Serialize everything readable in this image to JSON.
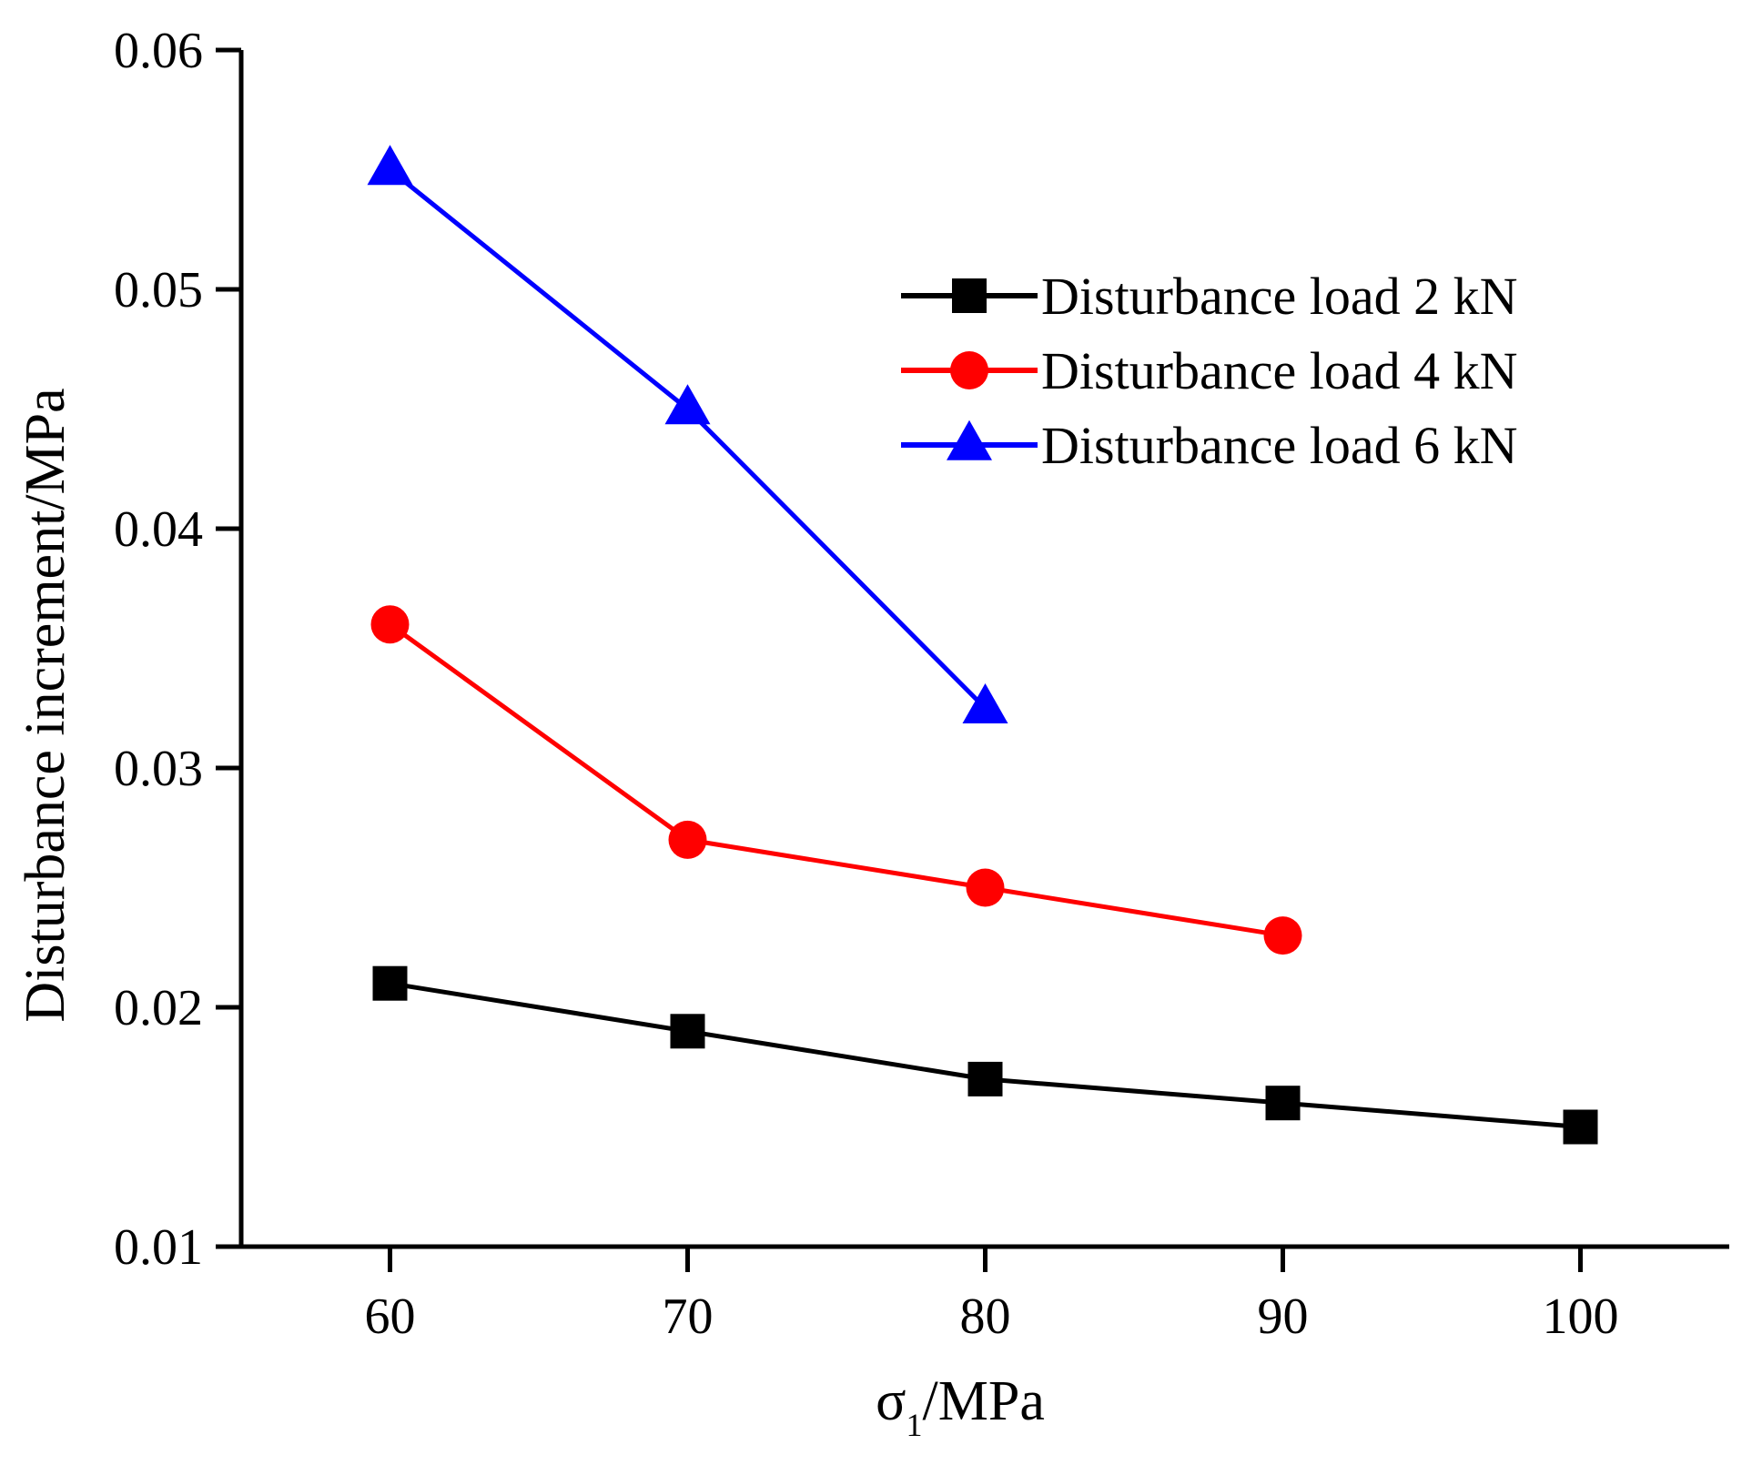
{
  "chart_data": {
    "type": "line",
    "title": "",
    "xlabel": {
      "main": "σ",
      "subscript": "1",
      "suffix": "/MPa"
    },
    "ylabel": "Disturbance increment/MPa",
    "xlim": [
      55,
      105
    ],
    "ylim": [
      0.01,
      0.06
    ],
    "xticks": [
      60,
      70,
      80,
      90,
      100
    ],
    "yticks": [
      0.01,
      0.02,
      0.03,
      0.04,
      0.05,
      0.06
    ],
    "xtick_labels": [
      "60",
      "70",
      "80",
      "90",
      "100"
    ],
    "ytick_labels": [
      "0.01",
      "0.02",
      "0.03",
      "0.04",
      "0.05",
      "0.06"
    ],
    "grid": false,
    "legend_position": "top-right",
    "series": [
      {
        "name": "Disturbance load 2 kN",
        "color": "#000000",
        "marker": "square",
        "x": [
          60,
          70,
          80,
          90,
          100
        ],
        "y": [
          0.021,
          0.019,
          0.017,
          0.016,
          0.015
        ]
      },
      {
        "name": "Disturbance load 4 kN",
        "color": "#ff0000",
        "marker": "circle",
        "x": [
          60,
          70,
          80,
          90
        ],
        "y": [
          0.036,
          0.027,
          0.025,
          0.023
        ]
      },
      {
        "name": "Disturbance load 6 kN",
        "color": "#0000ff",
        "marker": "triangle",
        "x": [
          60,
          70,
          80
        ],
        "y": [
          0.055,
          0.045,
          0.0325
        ]
      }
    ]
  }
}
